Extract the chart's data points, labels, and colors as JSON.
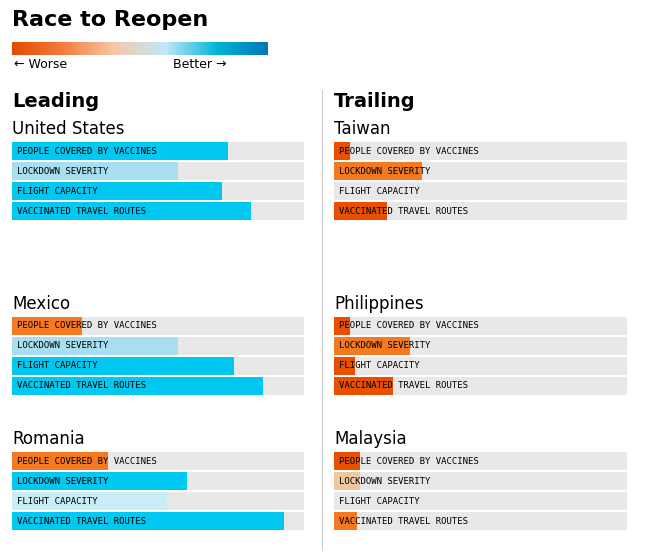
{
  "title": "Race to Reopen",
  "left_header": "Leading",
  "right_header": "Trailing",
  "categories": [
    "PEOPLE COVERED BY VACCINES",
    "LOCKDOWN SEVERITY",
    "FLIGHT CAPACITY",
    "VACCINATED TRAVEL ROUTES"
  ],
  "countries_left": [
    {
      "name": "United States",
      "vals": [
        0.74,
        0.57,
        0.72,
        0.82
      ],
      "colors": [
        "#00c8f0",
        "#a8dff0",
        "#00c8f0",
        "#00c8f0"
      ]
    },
    {
      "name": "Mexico",
      "vals": [
        0.24,
        0.57,
        0.76,
        0.86
      ],
      "colors": [
        "#f47920",
        "#a8dff0",
        "#00c8f0",
        "#00c8f0"
      ]
    },
    {
      "name": "Romania",
      "vals": [
        0.33,
        0.6,
        0.53,
        0.93
      ],
      "colors": [
        "#f47920",
        "#00c8f0",
        "#c8edf7",
        "#00c8f0"
      ]
    }
  ],
  "countries_right": [
    {
      "name": "Taiwan",
      "vals": [
        0.055,
        0.3,
        0.01,
        0.18
      ],
      "colors": [
        "#e85000",
        "#f47920",
        "#e8e8e8",
        "#e85000"
      ]
    },
    {
      "name": "Philippines",
      "vals": [
        0.055,
        0.26,
        0.07,
        0.2
      ],
      "colors": [
        "#e85000",
        "#f47920",
        "#e85000",
        "#e85000"
      ]
    },
    {
      "name": "Malaysia",
      "vals": [
        0.09,
        0.09,
        0.02,
        0.08
      ],
      "colors": [
        "#e85000",
        "#f0c8a0",
        "#e8e8e8",
        "#f47920"
      ]
    }
  ],
  "bg_bar_color": "#e8e8e8",
  "legend_colors": [
    "#e34a00",
    "#f47c3c",
    "#f5c8a8",
    "#c0e8f8",
    "#00b4d8",
    "#0077b6"
  ],
  "worse_label": "← Worse",
  "better_label": "Better →"
}
